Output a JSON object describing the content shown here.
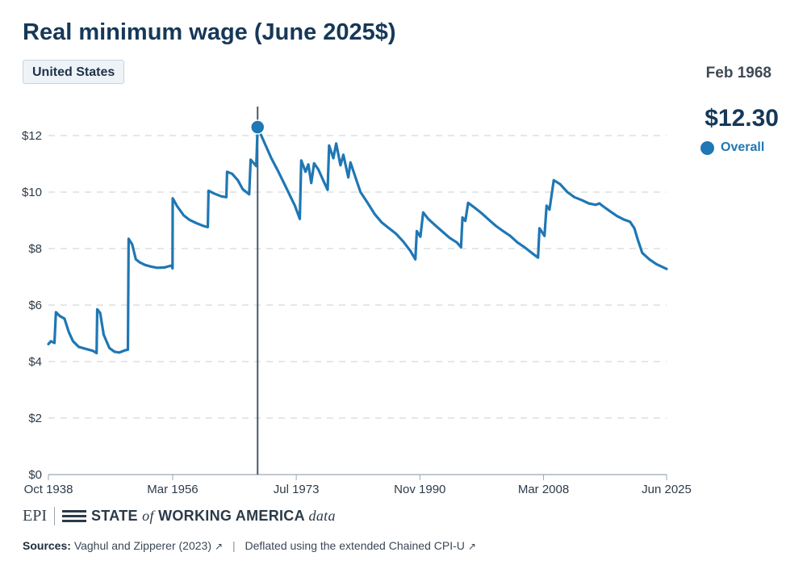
{
  "title": "Real minimum wage (June 2025$)",
  "region_button": "United States",
  "tooltip": {
    "date": "Feb 1968",
    "value": "$12.30",
    "series_label": "Overall"
  },
  "brand": {
    "epi": "EPI",
    "state": "STATE",
    "of": "of",
    "working_america": "WORKING AMERICA",
    "data": "data"
  },
  "sources": {
    "label": "Sources:",
    "source_1": "Vaghul and Zipperer (2023)",
    "separator": "|",
    "source_2": "Deflated using the extended Chained CPI-U"
  },
  "colors": {
    "line": "#1f77b4",
    "title": "#163858",
    "crosshair": "#4a5a6a"
  },
  "chart_data": {
    "type": "line",
    "title": "Real minimum wage (June 2025$)",
    "xlabel": "",
    "ylabel": "",
    "x_range": [
      "1938-10",
      "2025-06"
    ],
    "ylim": [
      0,
      12
    ],
    "y_ticks": [
      0,
      2,
      4,
      6,
      8,
      10,
      12
    ],
    "y_tick_labels": [
      "$0",
      "$2",
      "$4",
      "$6",
      "$8",
      "$10",
      "$12"
    ],
    "x_tick_values": [
      1938.75,
      1956.17,
      1973.5,
      1990.83,
      2008.17,
      2025.42
    ],
    "x_tick_labels": [
      "Oct 1938",
      "Mar 1956",
      "Jul 1973",
      "Nov 1990",
      "Mar 2008",
      "Jun 2025"
    ],
    "grid": "horizontal dashed",
    "highlight": {
      "x": 1968.08,
      "y": 12.3,
      "label": "Feb 1968"
    },
    "series": [
      {
        "name": "Overall",
        "color": "#1f77b4",
        "points": [
          [
            1938.75,
            4.62
          ],
          [
            1939.1,
            4.72
          ],
          [
            1939.6,
            4.66
          ],
          [
            1939.8,
            5.75
          ],
          [
            1940.3,
            5.62
          ],
          [
            1941.0,
            5.52
          ],
          [
            1941.6,
            5.05
          ],
          [
            1942.2,
            4.72
          ],
          [
            1943.0,
            4.52
          ],
          [
            1944.0,
            4.45
          ],
          [
            1945.0,
            4.38
          ],
          [
            1945.5,
            4.3
          ],
          [
            1945.6,
            5.85
          ],
          [
            1946.0,
            5.72
          ],
          [
            1946.5,
            4.95
          ],
          [
            1947.3,
            4.48
          ],
          [
            1948.0,
            4.35
          ],
          [
            1948.7,
            4.32
          ],
          [
            1949.5,
            4.4
          ],
          [
            1949.9,
            4.42
          ],
          [
            1950.0,
            8.35
          ],
          [
            1950.5,
            8.15
          ],
          [
            1951.0,
            7.62
          ],
          [
            1951.5,
            7.52
          ],
          [
            1952.3,
            7.42
          ],
          [
            1953.2,
            7.36
          ],
          [
            1954.0,
            7.32
          ],
          [
            1955.0,
            7.33
          ],
          [
            1956.0,
            7.4
          ],
          [
            1956.15,
            7.3
          ],
          [
            1956.17,
            9.78
          ],
          [
            1956.8,
            9.5
          ],
          [
            1957.7,
            9.18
          ],
          [
            1958.5,
            9.02
          ],
          [
            1959.5,
            8.9
          ],
          [
            1960.5,
            8.8
          ],
          [
            1961.1,
            8.76
          ],
          [
            1961.2,
            10.05
          ],
          [
            1962.0,
            9.95
          ],
          [
            1963.0,
            9.85
          ],
          [
            1963.7,
            9.82
          ],
          [
            1963.8,
            10.72
          ],
          [
            1964.5,
            10.65
          ],
          [
            1965.3,
            10.42
          ],
          [
            1966.0,
            10.1
          ],
          [
            1966.9,
            9.92
          ],
          [
            1967.1,
            11.15
          ],
          [
            1967.9,
            10.92
          ],
          [
            1968.08,
            12.3
          ],
          [
            1968.6,
            12.0
          ],
          [
            1969.3,
            11.6
          ],
          [
            1970.0,
            11.2
          ],
          [
            1971.0,
            10.72
          ],
          [
            1972.0,
            10.2
          ],
          [
            1973.3,
            9.52
          ],
          [
            1974.0,
            9.05
          ],
          [
            1974.2,
            11.12
          ],
          [
            1974.8,
            10.72
          ],
          [
            1975.2,
            10.98
          ],
          [
            1975.6,
            10.32
          ],
          [
            1976.0,
            11.02
          ],
          [
            1976.6,
            10.8
          ],
          [
            1977.4,
            10.35
          ],
          [
            1977.9,
            10.08
          ],
          [
            1978.1,
            11.65
          ],
          [
            1978.7,
            11.2
          ],
          [
            1979.1,
            11.72
          ],
          [
            1979.7,
            10.95
          ],
          [
            1980.1,
            11.32
          ],
          [
            1980.8,
            10.52
          ],
          [
            1981.1,
            11.05
          ],
          [
            1981.8,
            10.52
          ],
          [
            1982.5,
            10.0
          ],
          [
            1983.5,
            9.62
          ],
          [
            1984.5,
            9.22
          ],
          [
            1985.5,
            8.92
          ],
          [
            1986.5,
            8.72
          ],
          [
            1987.5,
            8.52
          ],
          [
            1988.5,
            8.25
          ],
          [
            1989.5,
            7.92
          ],
          [
            1990.2,
            7.62
          ],
          [
            1990.4,
            8.62
          ],
          [
            1990.9,
            8.42
          ],
          [
            1991.3,
            9.28
          ],
          [
            1992.0,
            9.05
          ],
          [
            1993.0,
            8.82
          ],
          [
            1994.0,
            8.6
          ],
          [
            1995.0,
            8.38
          ],
          [
            1996.0,
            8.22
          ],
          [
            1996.6,
            8.05
          ],
          [
            1996.8,
            9.1
          ],
          [
            1997.2,
            8.98
          ],
          [
            1997.6,
            9.62
          ],
          [
            1998.5,
            9.45
          ],
          [
            1999.5,
            9.25
          ],
          [
            2000.5,
            9.02
          ],
          [
            2001.5,
            8.8
          ],
          [
            2002.5,
            8.62
          ],
          [
            2003.5,
            8.45
          ],
          [
            2004.5,
            8.22
          ],
          [
            2005.5,
            8.05
          ],
          [
            2006.5,
            7.85
          ],
          [
            2007.4,
            7.68
          ],
          [
            2007.6,
            8.72
          ],
          [
            2008.3,
            8.45
          ],
          [
            2008.6,
            9.52
          ],
          [
            2009.0,
            9.38
          ],
          [
            2009.6,
            10.42
          ],
          [
            2010.5,
            10.28
          ],
          [
            2011.5,
            10.0
          ],
          [
            2012.5,
            9.82
          ],
          [
            2013.5,
            9.72
          ],
          [
            2014.5,
            9.6
          ],
          [
            2015.5,
            9.55
          ],
          [
            2016.0,
            9.6
          ],
          [
            2016.5,
            9.5
          ],
          [
            2017.5,
            9.32
          ],
          [
            2018.5,
            9.15
          ],
          [
            2019.5,
            9.02
          ],
          [
            2020.3,
            8.95
          ],
          [
            2020.9,
            8.72
          ],
          [
            2021.4,
            8.3
          ],
          [
            2022.0,
            7.85
          ],
          [
            2023.0,
            7.62
          ],
          [
            2024.0,
            7.45
          ],
          [
            2025.42,
            7.28
          ]
        ]
      }
    ]
  }
}
